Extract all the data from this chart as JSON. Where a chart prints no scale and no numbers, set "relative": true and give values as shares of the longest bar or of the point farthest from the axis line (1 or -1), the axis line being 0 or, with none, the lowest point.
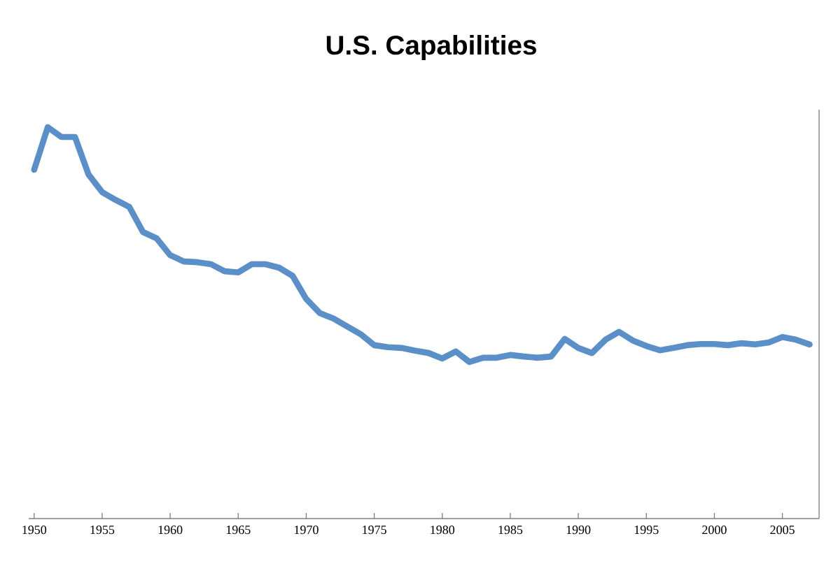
{
  "chart_data": {
    "type": "line",
    "title": "U.S. Capabilities",
    "relative": true,
    "x": [
      1950,
      1951,
      1952,
      1953,
      1954,
      1955,
      1956,
      1957,
      1958,
      1959,
      1960,
      1961,
      1962,
      1963,
      1964,
      1965,
      1966,
      1967,
      1968,
      1969,
      1970,
      1971,
      1972,
      1973,
      1974,
      1975,
      1976,
      1977,
      1978,
      1979,
      1980,
      1981,
      1982,
      1983,
      1984,
      1985,
      1986,
      1987,
      1988,
      1989,
      1990,
      1991,
      1992,
      1993,
      1994,
      1995,
      1996,
      1997,
      1998,
      1999,
      2000,
      2001,
      2002,
      2003,
      2004,
      2005,
      2006,
      2007
    ],
    "series": [
      {
        "color": "#5b8fc7",
        "values": [
          0.891,
          1.0,
          0.975,
          0.975,
          0.879,
          0.834,
          0.814,
          0.796,
          0.732,
          0.716,
          0.673,
          0.657,
          0.655,
          0.65,
          0.632,
          0.629,
          0.65,
          0.65,
          0.641,
          0.62,
          0.561,
          0.525,
          0.511,
          0.491,
          0.471,
          0.443,
          0.438,
          0.436,
          0.429,
          0.423,
          0.409,
          0.427,
          0.4,
          0.411,
          0.411,
          0.418,
          0.414,
          0.411,
          0.414,
          0.459,
          0.436,
          0.423,
          0.457,
          0.477,
          0.455,
          0.441,
          0.43,
          0.436,
          0.443,
          0.446,
          0.446,
          0.443,
          0.448,
          0.445,
          0.45,
          0.464,
          0.457,
          0.445
        ]
      }
    ],
    "xlim": [
      1949.6,
      2007.7
    ],
    "xticks": [
      1950,
      1955,
      1960,
      1965,
      1970,
      1975,
      1980,
      1985,
      1990,
      1995,
      2000,
      2005
    ],
    "grid": false,
    "marker": "none",
    "line_style": "solid"
  }
}
